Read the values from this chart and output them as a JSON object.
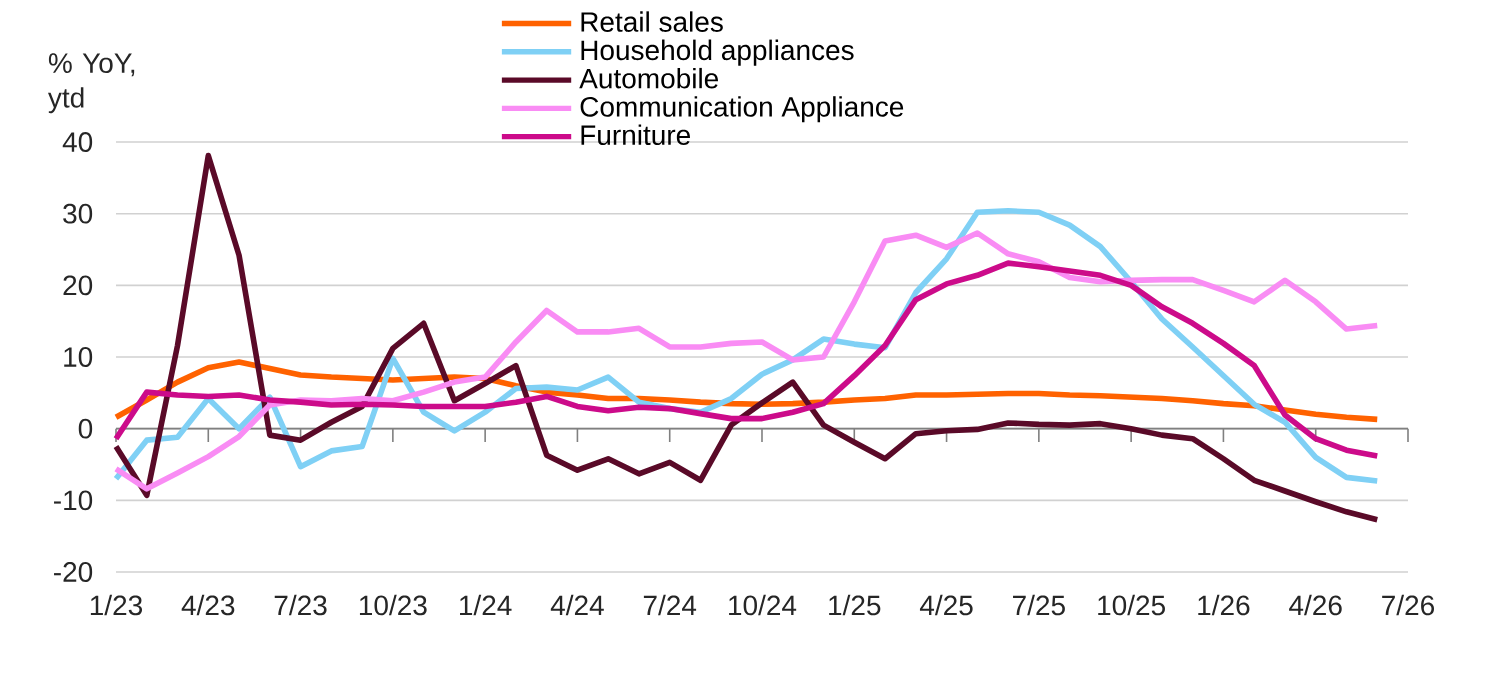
{
  "chart_data": {
    "type": "line",
    "ylabel": "% YoY, ytd",
    "x": [
      "2023-01",
      "2023-02",
      "2023-03",
      "2023-04",
      "2023-05",
      "2023-06",
      "2023-07",
      "2023-08",
      "2023-09",
      "2023-10",
      "2023-11",
      "2023-12",
      "2024-01",
      "2024-02",
      "2024-03",
      "2024-04",
      "2024-05",
      "2024-06",
      "2024-07",
      "2024-08",
      "2024-09",
      "2024-10",
      "2024-11",
      "2024-12",
      "2025-01",
      "2025-02",
      "2025-03",
      "2025-04",
      "2025-05",
      "2025-06",
      "2025-07",
      "2025-08",
      "2025-09",
      "2025-10",
      "2025-11",
      "2025-12",
      "2026-01",
      "2026-02",
      "2026-03",
      "2026-04",
      "2026-05",
      "2026-06"
    ],
    "series": [
      {
        "name": "Retail sales",
        "color": "#ff6200",
        "values": [
          1.6,
          4,
          6.5,
          8.5,
          9.3,
          8.4,
          7.5,
          7.2,
          7,
          6.8,
          7,
          7.2,
          7,
          6,
          5.1,
          4.7,
          4.2,
          4.2,
          4,
          3.7,
          3.5,
          3.4,
          3.5,
          3.7,
          4,
          4.2,
          4.7,
          4.7,
          4.8,
          4.9,
          4.9,
          4.7,
          4.6,
          4.4,
          4.2,
          3.9,
          3.5,
          3.2,
          2.6,
          2,
          1.6,
          1.3
        ]
      },
      {
        "name": "Household appliances",
        "color": "#7fd0f5",
        "values": [
          -7,
          -1.6,
          -1.2,
          4.2,
          0,
          4.4,
          -5.3,
          -3.1,
          -2.5,
          9.8,
          2.3,
          -0.3,
          2.3,
          5.6,
          5.8,
          5.4,
          7.2,
          3.7,
          2.8,
          2.3,
          4.2,
          7.6,
          9.6,
          12.5,
          11.8,
          11.3,
          19,
          23.7,
          30.2,
          30.4,
          30.2,
          28.4,
          25.4,
          20.5,
          15.3,
          11.4,
          7.4,
          3.4,
          0.9,
          -4,
          -6.8,
          -7.3
        ]
      },
      {
        "name": "Automobile",
        "color": "#5a0a28",
        "values": [
          -2.5,
          -9.3,
          11.6,
          38.1,
          24.2,
          -0.9,
          -1.6,
          0.9,
          3.1,
          11.2,
          14.7,
          3.9,
          6.3,
          8.8,
          -3.7,
          -5.8,
          -4.2,
          -6.3,
          -4.7,
          -7.2,
          0.5,
          3.6,
          6.5,
          0.5,
          -1.9,
          -4.2,
          -0.7,
          -0.3,
          -0.1,
          0.8,
          0.6,
          0.5,
          0.7,
          0,
          -0.9,
          -1.4,
          -4.2,
          -7.2,
          -8.7,
          -10.2,
          -11.6,
          -12.7
        ]
      },
      {
        "name": "Communication Appliance",
        "color": "#f98cf4",
        "values": [
          -5.6,
          -8.4,
          -6.2,
          -3.9,
          -1.1,
          3.3,
          4,
          3.9,
          4.2,
          3.9,
          5.1,
          6.5,
          7.2,
          12.1,
          16.5,
          13.5,
          13.5,
          14,
          11.4,
          11.4,
          11.9,
          12.1,
          9.6,
          10,
          17.7,
          26.2,
          27,
          25.3,
          27.3,
          24.4,
          23.3,
          21.1,
          20.5,
          20.7,
          20.8,
          20.8,
          19.3,
          17.7,
          20.7,
          17.7,
          13.9,
          14.4
        ]
      },
      {
        "name": "Furniture",
        "color": "#cc0b8a",
        "values": [
          -1.4,
          5.1,
          4.7,
          4.5,
          4.7,
          4,
          3.7,
          3.3,
          3.4,
          3.3,
          3.1,
          3.1,
          3.1,
          3.7,
          4.5,
          3.1,
          2.5,
          3,
          2.8,
          2.1,
          1.4,
          1.4,
          2.3,
          3.5,
          7.4,
          11.6,
          18,
          20.2,
          21.4,
          23.1,
          22.6,
          22,
          21.4,
          20,
          17,
          14.7,
          11.9,
          8.8,
          1.9,
          -1.4,
          -3,
          -3.8
        ]
      }
    ],
    "xlim": [
      "2023-01",
      "2026-07"
    ],
    "xticks": [
      {
        "value": "2023-01",
        "label": "1/23"
      },
      {
        "value": "2023-04",
        "label": "4/23"
      },
      {
        "value": "2023-07",
        "label": "7/23"
      },
      {
        "value": "2023-10",
        "label": "10/23"
      },
      {
        "value": "2024-01",
        "label": "1/24"
      },
      {
        "value": "2024-04",
        "label": "4/24"
      },
      {
        "value": "2024-07",
        "label": "7/24"
      },
      {
        "value": "2024-10",
        "label": "10/24"
      },
      {
        "value": "2025-01",
        "label": "1/25"
      },
      {
        "value": "2025-04",
        "label": "4/25"
      },
      {
        "value": "2025-07",
        "label": "7/25"
      },
      {
        "value": "2025-10",
        "label": "10/25"
      },
      {
        "value": "2026-01",
        "label": "1/26"
      },
      {
        "value": "2026-04",
        "label": "4/26"
      },
      {
        "value": "2026-07",
        "label": "7/26"
      }
    ],
    "ylim": [
      -20,
      40
    ],
    "yticks": [
      -20,
      -10,
      0,
      10,
      20,
      30,
      40
    ],
    "grid": "y",
    "legend": "top"
  }
}
